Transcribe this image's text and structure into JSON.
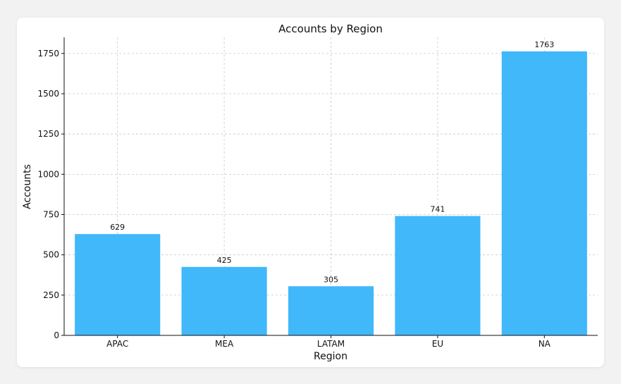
{
  "chart_data": {
    "type": "bar",
    "title": "Accounts by Region",
    "xlabel": "Region",
    "ylabel": "Accounts",
    "categories": [
      "APAC",
      "MEA",
      "LATAM",
      "EU",
      "NA"
    ],
    "values": [
      629,
      425,
      305,
      741,
      1763
    ],
    "ylim": [
      0,
      1850
    ],
    "yticks": [
      0,
      250,
      500,
      750,
      1000,
      1250,
      1500,
      1750
    ],
    "grid": true,
    "bar_color": "#40b8fa"
  }
}
